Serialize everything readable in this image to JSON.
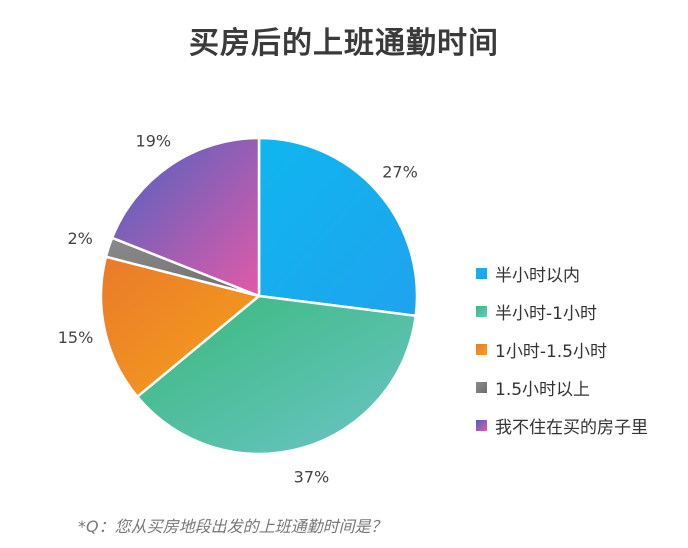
{
  "chart_data": {
    "type": "pie",
    "title": "买房后的上班通勤时间",
    "categories": [
      "半小时以内",
      "半小时-1小时",
      "1小时-1.5小时",
      "1.5小时以上",
      "我不住在买的房子里"
    ],
    "values": [
      27,
      37,
      15,
      2,
      19
    ],
    "labels": [
      "27%",
      "37%",
      "15%",
      "2%",
      "19%"
    ],
    "colors": [
      [
        "#0fb6ef",
        "#1fa3ee"
      ],
      [
        "#38b97a",
        "#6cc5c8"
      ],
      [
        "#ea7a2b",
        "#f5a11a"
      ],
      [
        "#8a8a8a",
        "#6e6e6e"
      ],
      [
        "#4a63c2",
        "#e25aa8"
      ]
    ],
    "legend_position": "right",
    "footnote": "*Q：您从买房地段出发的上班通勤时间是？"
  }
}
